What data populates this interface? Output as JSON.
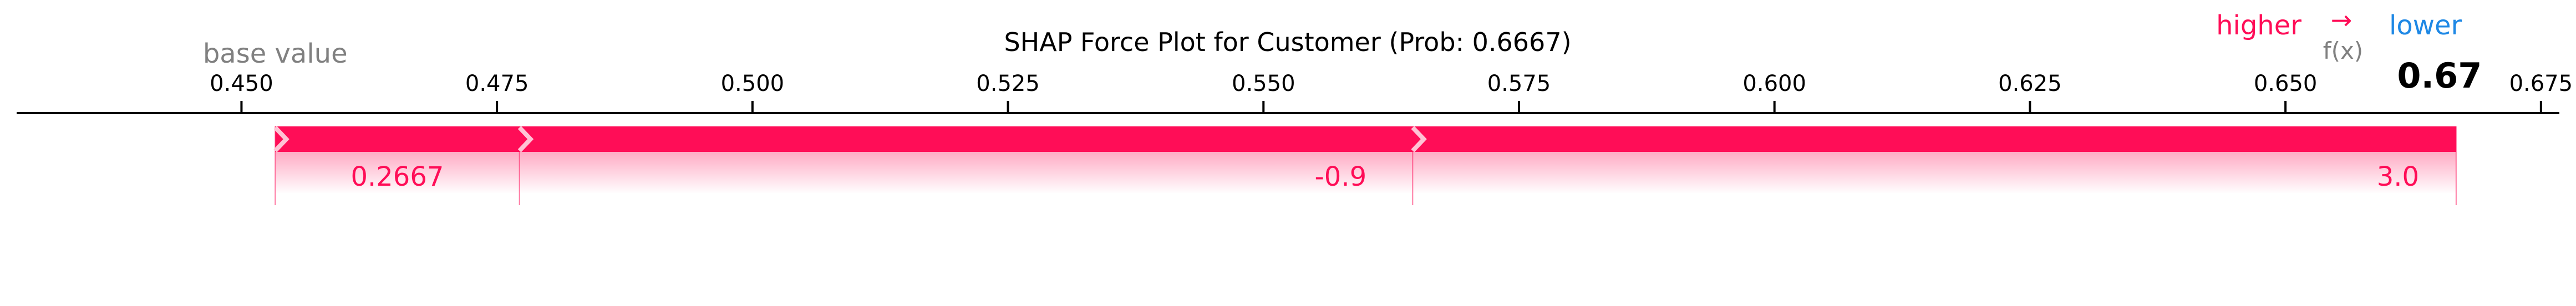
{
  "chart_data": {
    "type": "force",
    "title": "SHAP Force Plot for Customer (Prob: 0.6667)",
    "legend": {
      "higher": "higher",
      "arrow": "→",
      "lower": "lower",
      "fx": "f(x)"
    },
    "base_value_label": "base value",
    "base_value": 0.4533,
    "output_value": 0.6667,
    "output_value_label": "0.67",
    "xlim": [
      0.428,
      0.6768
    ],
    "xticks": [
      0.45,
      0.475,
      0.5,
      0.525,
      0.55,
      0.575,
      0.6,
      0.625,
      0.65,
      0.675
    ],
    "xtick_labels": [
      "0.450",
      "0.475",
      "0.500",
      "0.525",
      "0.550",
      "0.575",
      "0.600",
      "0.625",
      "0.650",
      "0.675"
    ],
    "segments": [
      {
        "start": 0.4533,
        "end": 0.4772,
        "label": "0.2667"
      },
      {
        "start": 0.4772,
        "end": 0.5646,
        "label": "-0.9"
      },
      {
        "start": 0.5646,
        "end": 0.6667,
        "label": "3.0"
      }
    ],
    "colors": {
      "positive": "#ff0d57",
      "negative": "#1e88e5",
      "base_text": "#808080",
      "axis": "#000000",
      "separator": "#ffc3d5"
    }
  }
}
